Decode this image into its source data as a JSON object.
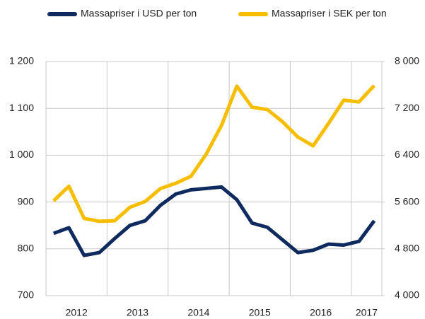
{
  "chart_data": {
    "type": "line",
    "categories": [
      null,
      null,
      null,
      null,
      null,
      null,
      null,
      null,
      null,
      null,
      null,
      null,
      null,
      null,
      null,
      null,
      null,
      null,
      null,
      null,
      null,
      null
    ],
    "x_groups": [
      {
        "label": "2012",
        "count": 4
      },
      {
        "label": "2013",
        "count": 4
      },
      {
        "label": "2014",
        "count": 4
      },
      {
        "label": "2015",
        "count": 4
      },
      {
        "label": "2016",
        "count": 4
      },
      {
        "label": "2017",
        "count": 2
      }
    ],
    "series": [
      {
        "name": "Massapriser i USD per ton",
        "color": "#0f2a5e",
        "axis": "y",
        "values": [
          833,
          845,
          786,
          792,
          822,
          850,
          860,
          893,
          917,
          926,
          929,
          932,
          905,
          855,
          846,
          819,
          792,
          797,
          810,
          808,
          816,
          860
        ]
      },
      {
        "name": "Massapriser i SEK per ton",
        "color": "#f7be00",
        "axis": "y2",
        "values": [
          5620,
          5870,
          5320,
          5270,
          5280,
          5510,
          5610,
          5830,
          5920,
          6040,
          6420,
          6910,
          7580,
          7220,
          7180,
          6970,
          6710,
          6560,
          6940,
          7340,
          7310,
          7590
        ]
      }
    ],
    "ylim": [
      700,
      1200
    ],
    "yticks": [
      700,
      800,
      900,
      {
        "value": 1000,
        "label": "1 000"
      },
      {
        "value": 1100,
        "label": "1 100"
      },
      {
        "value": 1200,
        "label": "1 200"
      }
    ],
    "y2lim": [
      4000,
      8000
    ],
    "y2ticks": [
      {
        "value": 4000,
        "label": "4 000"
      },
      {
        "value": 4800,
        "label": "4 800"
      },
      {
        "value": 5600,
        "label": "5 600"
      },
      {
        "value": 6400,
        "label": "6 400"
      },
      {
        "value": 7200,
        "label": "7 200"
      },
      {
        "value": 8000,
        "label": "8 000"
      }
    ],
    "grid": true,
    "legend": "top"
  }
}
